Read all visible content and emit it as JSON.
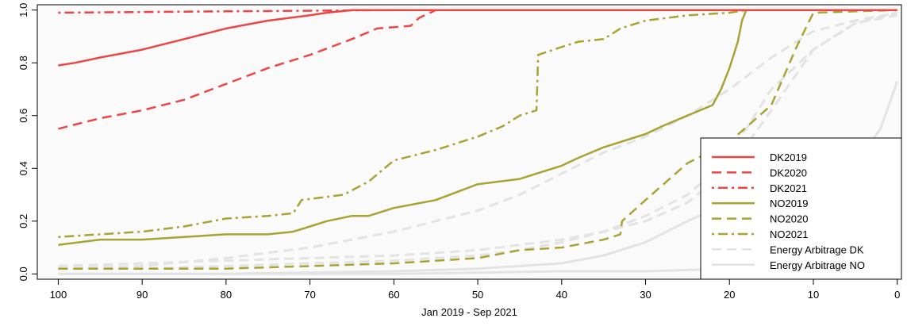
{
  "chart_data": {
    "type": "line",
    "title": "",
    "xlabel": "Jan 2019 - Sep 2021",
    "ylabel": "",
    "xlim": [
      102.5,
      -0.5
    ],
    "ylim": [
      -0.02,
      1.02
    ],
    "x_reversed": true,
    "x_ticks": [
      100,
      90,
      80,
      70,
      60,
      50,
      40,
      30,
      20,
      10,
      0
    ],
    "y_ticks": [
      0.0,
      0.2,
      0.4,
      0.6,
      0.8,
      1.0
    ],
    "y_tick_labels": [
      "0.0",
      "0.2",
      "0.4",
      "0.6",
      "0.8",
      "1.0"
    ],
    "grid": false,
    "background": "#fafafa",
    "legend_position": "bottom-right",
    "series": [
      {
        "name": "Energy Arbitrage DK",
        "color": "#e3e3e3",
        "dash": "dashed",
        "width": 3,
        "x": [
          100,
          90,
          80,
          70,
          60,
          50,
          40,
          35,
          30,
          25,
          20,
          15,
          10,
          5,
          0
        ],
        "y": [
          0.03,
          0.04,
          0.05,
          0.06,
          0.07,
          0.09,
          0.13,
          0.16,
          0.2,
          0.27,
          0.4,
          0.62,
          0.85,
          0.95,
          0.98
        ]
      },
      {
        "name": "Energy Arbitrage DK",
        "color": "#e3e3e3",
        "dash": "dashed",
        "width": 3,
        "x": [
          100,
          90,
          80,
          70,
          60,
          50,
          45,
          40,
          35,
          30,
          25,
          20,
          15,
          10,
          5,
          0
        ],
        "y": [
          0.02,
          0.03,
          0.06,
          0.1,
          0.16,
          0.24,
          0.3,
          0.38,
          0.46,
          0.52,
          0.6,
          0.7,
          0.82,
          0.92,
          0.96,
          0.99
        ]
      },
      {
        "name": "Energy Arbitrage DK",
        "color": "#e3e3e3",
        "dash": "dashed",
        "width": 3,
        "x": [
          100,
          90,
          80,
          70,
          60,
          50,
          45,
          40,
          35,
          30,
          25,
          22,
          18,
          15,
          10,
          5,
          0
        ],
        "y": [
          0.02,
          0.02,
          0.03,
          0.04,
          0.05,
          0.07,
          0.09,
          0.12,
          0.16,
          0.22,
          0.3,
          0.38,
          0.55,
          0.7,
          0.85,
          0.95,
          0.99
        ]
      },
      {
        "name": "Energy Arbitrage NO",
        "color": "#e3e3e3",
        "dash": "solid",
        "width": 3,
        "x": [
          100,
          80,
          60,
          50,
          40,
          35,
          30,
          25,
          20,
          15,
          10,
          5,
          2,
          0
        ],
        "y": [
          0.0,
          0.0,
          0.01,
          0.02,
          0.04,
          0.07,
          0.12,
          0.2,
          0.27,
          0.33,
          0.37,
          0.42,
          0.55,
          0.73
        ]
      },
      {
        "name": "Energy Arbitrage NO",
        "color": "#e3e3e3",
        "dash": "solid",
        "width": 3,
        "x": [
          100,
          80,
          60,
          40,
          30,
          20,
          10,
          5,
          0
        ],
        "y": [
          0.0,
          0.0,
          0.0,
          0.01,
          0.01,
          0.02,
          0.02,
          0.03,
          0.04
        ]
      },
      {
        "name": "NO2020",
        "color": "#a8a332",
        "dash": "dashed",
        "width": 2.5,
        "x": [
          100,
          90,
          80,
          70,
          60,
          55,
          50,
          45,
          40,
          35,
          33,
          32.8,
          30,
          25,
          20,
          15,
          12,
          10,
          0
        ],
        "y": [
          0.02,
          0.02,
          0.02,
          0.03,
          0.04,
          0.05,
          0.06,
          0.09,
          0.1,
          0.13,
          0.15,
          0.2,
          0.28,
          0.42,
          0.5,
          0.64,
          0.86,
          0.99,
          1.0
        ]
      },
      {
        "name": "NO2021",
        "color": "#a8a332",
        "dash": "dotdash",
        "width": 2.5,
        "x": [
          100,
          95,
          90,
          85,
          80,
          75,
          72,
          71,
          66,
          63,
          60,
          55,
          50,
          47,
          45,
          43,
          42.8,
          40,
          38,
          35,
          33,
          30,
          25,
          20,
          18,
          15,
          10,
          5,
          0
        ],
        "y": [
          0.14,
          0.15,
          0.16,
          0.18,
          0.21,
          0.22,
          0.23,
          0.28,
          0.3,
          0.35,
          0.43,
          0.47,
          0.52,
          0.56,
          0.6,
          0.62,
          0.83,
          0.86,
          0.88,
          0.89,
          0.93,
          0.96,
          0.98,
          0.99,
          1.0,
          1.0,
          1.0,
          1.0,
          1.0
        ]
      },
      {
        "name": "NO2019",
        "color": "#a8a332",
        "dash": "solid",
        "width": 2.5,
        "x": [
          100,
          95,
          90,
          85,
          80,
          75,
          72,
          70,
          68,
          65,
          63,
          60,
          55,
          50,
          45,
          42,
          40,
          38,
          35,
          30,
          28,
          25,
          22,
          21,
          20,
          19,
          18.5,
          18,
          15,
          10,
          5,
          0
        ],
        "y": [
          0.11,
          0.13,
          0.13,
          0.14,
          0.15,
          0.15,
          0.16,
          0.18,
          0.2,
          0.22,
          0.22,
          0.25,
          0.28,
          0.34,
          0.36,
          0.39,
          0.41,
          0.44,
          0.48,
          0.53,
          0.56,
          0.6,
          0.64,
          0.7,
          0.78,
          0.88,
          0.96,
          1.0,
          1.0,
          1.0,
          1.0,
          1.0
        ]
      },
      {
        "name": "DK2019",
        "color": "#ee4444",
        "dash": "solid",
        "width": 2.5,
        "x": [
          100,
          98,
          95,
          90,
          85,
          80,
          75,
          70,
          68,
          65,
          60,
          40,
          20,
          0
        ],
        "y": [
          0.79,
          0.8,
          0.82,
          0.85,
          0.89,
          0.93,
          0.96,
          0.98,
          0.99,
          1.0,
          1.0,
          1.0,
          1.0,
          1.0
        ]
      },
      {
        "name": "DK2020",
        "color": "#ee4444",
        "dash": "dashed",
        "width": 2.5,
        "x": [
          100,
          95,
          90,
          85,
          80,
          75,
          70,
          65,
          62,
          58,
          57,
          55,
          50,
          30,
          10,
          0
        ],
        "y": [
          0.55,
          0.59,
          0.62,
          0.66,
          0.72,
          0.78,
          0.83,
          0.89,
          0.93,
          0.94,
          0.97,
          1.0,
          1.0,
          1.0,
          1.0,
          1.0
        ]
      },
      {
        "name": "DK2021",
        "color": "#ee4444",
        "dash": "dotdash",
        "width": 2.5,
        "x": [
          100,
          80,
          60,
          40,
          20,
          0
        ],
        "y": [
          0.99,
          0.995,
          1.0,
          1.0,
          1.0,
          1.0
        ]
      }
    ],
    "legend": [
      {
        "label": "DK2019",
        "color": "#ee4444",
        "dash": "solid"
      },
      {
        "label": "DK2020",
        "color": "#ee4444",
        "dash": "dashed"
      },
      {
        "label": "DK2021",
        "color": "#ee4444",
        "dash": "dotdash"
      },
      {
        "label": "NO2019",
        "color": "#a8a332",
        "dash": "solid"
      },
      {
        "label": "NO2020",
        "color": "#a8a332",
        "dash": "dashed"
      },
      {
        "label": "NO2021",
        "color": "#a8a332",
        "dash": "dotdash"
      },
      {
        "label": "Energy Arbitrage DK",
        "color": "#e3e3e3",
        "dash": "dashed"
      },
      {
        "label": "Energy Arbitrage NO",
        "color": "#e3e3e3",
        "dash": "solid"
      }
    ]
  }
}
